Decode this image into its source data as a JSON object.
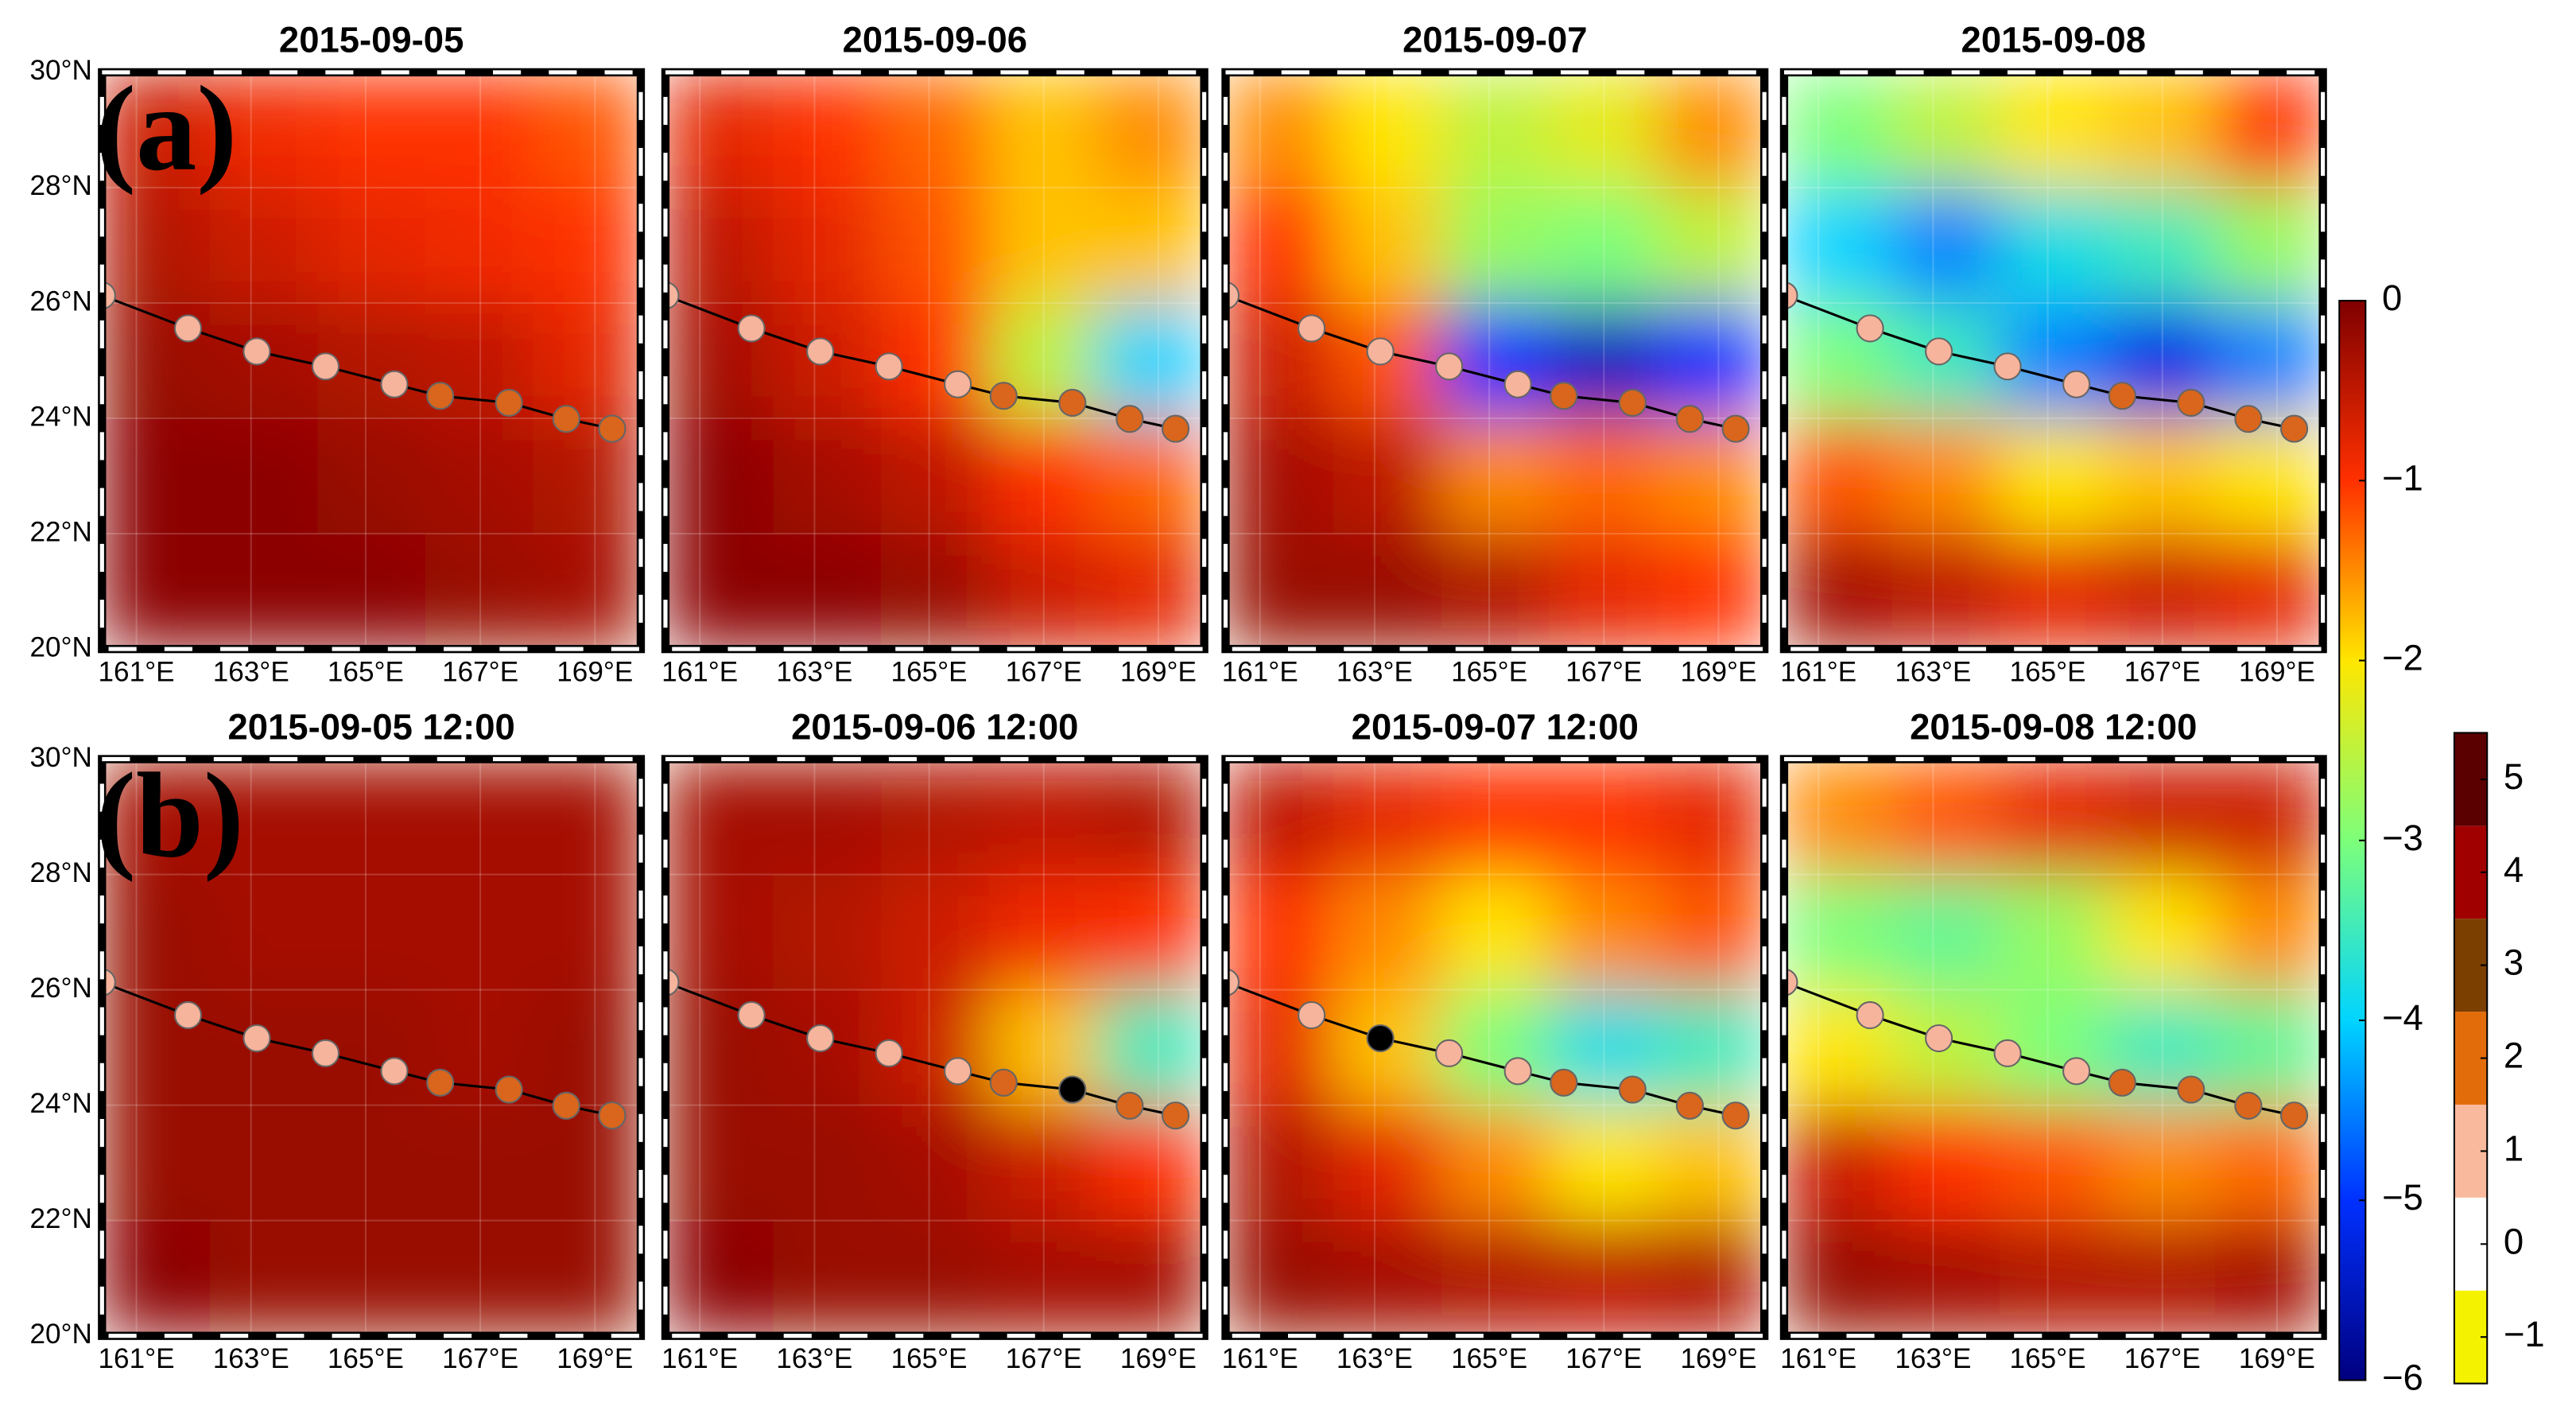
{
  "chart_data": {
    "type": "heatmap-grid",
    "xlim": [
      160.4,
      169.8
    ],
    "ylim": [
      20,
      30
    ],
    "xticks": [
      {
        "value": 161,
        "label": "161°E"
      },
      {
        "value": 163,
        "label": "163°E"
      },
      {
        "value": 165,
        "label": "165°E"
      },
      {
        "value": 167,
        "label": "167°E"
      },
      {
        "value": 169,
        "label": "169°E"
      }
    ],
    "yticks": [
      {
        "value": 20,
        "label": "20°N"
      },
      {
        "value": 22,
        "label": "22°N"
      },
      {
        "value": 24,
        "label": "24°N"
      },
      {
        "value": 26,
        "label": "26°N"
      },
      {
        "value": 28,
        "label": "28°N"
      },
      {
        "value": 30,
        "label": "30°N"
      }
    ],
    "grid": true,
    "track": {
      "lon": [
        160.4,
        161.9,
        163.1,
        164.3,
        165.5,
        166.3,
        167.5,
        168.5,
        169.3
      ],
      "lat": [
        26.13,
        25.56,
        25.16,
        24.9,
        24.59,
        24.39,
        24.27,
        23.99,
        23.82
      ]
    },
    "panels": [
      {
        "title": "2015-09-05",
        "label": "(a)",
        "field": [
          [
            -0.6,
            -0.9,
            -1,
            -1,
            -1.2
          ],
          [
            -0.4,
            -0.6,
            -0.8,
            -0.9,
            -1
          ],
          [
            -0.2,
            -0.3,
            -0.4,
            -0.5,
            -0.8
          ],
          [
            -0.1,
            -0.1,
            -0.2,
            -0.3,
            -0.4
          ],
          [
            -0.1,
            -0.1,
            -0.1,
            -0.2,
            -0.3
          ]
        ],
        "point_colors": [
          "#f7b49c",
          "#f7b49c",
          "#f7b49c",
          "#f7b49c",
          "#f7b49c",
          "#d9661c",
          "#d9661c",
          "#d9661c",
          "#d9661c"
        ]
      },
      {
        "title": "2015-09-06",
        "field": [
          [
            -0.8,
            -1,
            -1.3,
            -1.8,
            -1.5
          ],
          [
            -0.5,
            -0.8,
            -1.2,
            -1.8,
            -1.8
          ],
          [
            -0.3,
            -0.6,
            -1,
            -2.5,
            -4
          ],
          [
            -0.1,
            -0.3,
            -0.5,
            -1,
            -1.3
          ],
          [
            -0.1,
            -0.1,
            -0.2,
            -0.6,
            -0.8
          ]
        ],
        "point_colors": [
          "#f7b49c",
          "#f7b49c",
          "#f7b49c",
          "#f7b49c",
          "#f7b49c",
          "#d9661c",
          "#d9661c",
          "#d9661c",
          "#d9661c"
        ]
      },
      {
        "title": "2015-09-07",
        "field": [
          [
            -1.5,
            -2,
            -2.5,
            -2.2,
            -1.5
          ],
          [
            -1,
            -1.8,
            -2.8,
            -3,
            -2.5
          ],
          [
            -0.6,
            -1.2,
            -5,
            -5.5,
            -5
          ],
          [
            -0.3,
            -0.5,
            -1.5,
            -1.3,
            -1.5
          ],
          [
            -0.2,
            -0.2,
            -0.4,
            -0.8,
            -1
          ]
        ],
        "point_colors": [
          "#f7b49c",
          "#f7b49c",
          "#f7b49c",
          "#f7b49c",
          "#f7b49c",
          "#d9661c",
          "#d9661c",
          "#d9661c",
          "#d9661c"
        ]
      },
      {
        "title": "2015-09-08",
        "field": [
          [
            -3,
            -2.5,
            -2,
            -1.8,
            -1
          ],
          [
            -4,
            -4.5,
            -3.8,
            -3.5,
            -2.8
          ],
          [
            -3,
            -3.5,
            -4.5,
            -5.2,
            -4.5
          ],
          [
            -1.2,
            -1.5,
            -2,
            -1.8,
            -2
          ],
          [
            -0.3,
            -0.5,
            -0.8,
            -0.6,
            -0.8
          ]
        ],
        "point_colors": [
          "#f7b49c",
          "#f7b49c",
          "#f7b49c",
          "#f7b49c",
          "#f7b49c",
          "#d9661c",
          "#d9661c",
          "#d9661c",
          "#d9661c"
        ]
      },
      {
        "title": "2015-09-05 12:00",
        "label": "(b)",
        "field": [
          [
            -0.3,
            -0.3,
            -0.3,
            -0.3,
            -0.3
          ],
          [
            -0.2,
            -0.3,
            -0.3,
            -0.3,
            -0.3
          ],
          [
            -0.2,
            -0.2,
            -0.2,
            -0.3,
            -0.2
          ],
          [
            -0.2,
            -0.2,
            -0.2,
            -0.2,
            -0.2
          ],
          [
            -0.1,
            -0.2,
            -0.2,
            -0.2,
            -0.2
          ]
        ],
        "point_colors": [
          "#f7b49c",
          "#f7b49c",
          "#f7b49c",
          "#f7b49c",
          "#f7b49c",
          "#d9661c",
          "#d9661c",
          "#d9661c",
          "#d9661c"
        ]
      },
      {
        "title": "2015-09-06 12:00",
        "field": [
          [
            -0.3,
            -0.3,
            -0.4,
            -0.5,
            -0.4
          ],
          [
            -0.3,
            -0.4,
            -0.6,
            -0.9,
            -1
          ],
          [
            -0.2,
            -0.3,
            -0.6,
            -1.8,
            -3.5
          ],
          [
            -0.2,
            -0.2,
            -0.3,
            -0.6,
            -1
          ],
          [
            -0.1,
            -0.2,
            -0.2,
            -0.3,
            -0.3
          ]
        ],
        "point_colors": [
          "#f7b49c",
          "#f7b49c",
          "#f7b49c",
          "#f7b49c",
          "#f7b49c",
          "#d9661c",
          "#000000",
          "#d9661c",
          "#d9661c"
        ]
      },
      {
        "title": "2015-09-07 12:00",
        "field": [
          [
            -0.5,
            -0.8,
            -1,
            -1,
            -0.8
          ],
          [
            -1,
            -1.5,
            -2,
            -1.5,
            -1.2
          ],
          [
            -0.8,
            -1.8,
            -3,
            -3.8,
            -3.5
          ],
          [
            -0.4,
            -0.8,
            -1.5,
            -2,
            -1.8
          ],
          [
            -0.2,
            -0.3,
            -0.4,
            -0.5,
            -0.4
          ]
        ],
        "point_colors": [
          "#f7b49c",
          "#f7b49c",
          "#000000",
          "#f7b49c",
          "#f7b49c",
          "#d9661c",
          "#d9661c",
          "#d9661c",
          "#d9661c"
        ]
      },
      {
        "title": "2015-09-08 12:00",
        "field": [
          [
            -1.5,
            -1.2,
            -0.8,
            -0.6,
            -0.6
          ],
          [
            -3,
            -3.2,
            -2.8,
            -2,
            -1.5
          ],
          [
            -2,
            -2.5,
            -3,
            -3.5,
            -3.2
          ],
          [
            -0.6,
            -1,
            -1.2,
            -1.5,
            -1.3
          ],
          [
            -0.2,
            -0.3,
            -0.4,
            -0.4,
            -0.3
          ]
        ],
        "point_colors": [
          "#f7b49c",
          "#f7b49c",
          "#f7b49c",
          "#f7b49c",
          "#f7b49c",
          "#d9661c",
          "#d9661c",
          "#d9661c",
          "#d9661c"
        ]
      }
    ],
    "colorbar": {
      "lim": [
        -6,
        0
      ],
      "ticks": [
        0,
        {
          "value": -1,
          "label": "−1"
        },
        {
          "value": -2,
          "label": "−2"
        },
        {
          "value": -3,
          "label": "−3"
        },
        {
          "value": -4,
          "label": "−4"
        },
        {
          "value": -5,
          "label": "−5"
        },
        {
          "value": -6,
          "label": "−6"
        }
      ],
      "colors": [
        "#00007f",
        "#0030ff",
        "#00d4ff",
        "#7dff7a",
        "#ffe600",
        "#ff3000",
        "#7f0000"
      ]
    },
    "category_bar": {
      "lim": [
        -1.5,
        5.5
      ],
      "ticks": [
        5,
        4,
        3,
        2,
        1,
        0,
        {
          "value": -1,
          "label": "−1"
        }
      ],
      "categories": [
        -1,
        0,
        1,
        2,
        3,
        4,
        5
      ],
      "colors": [
        "#f5f200",
        "#ffffff",
        "#f9b99c",
        "#e36c0a",
        "#7b3f00",
        "#a00000",
        "#5a0000"
      ]
    }
  }
}
